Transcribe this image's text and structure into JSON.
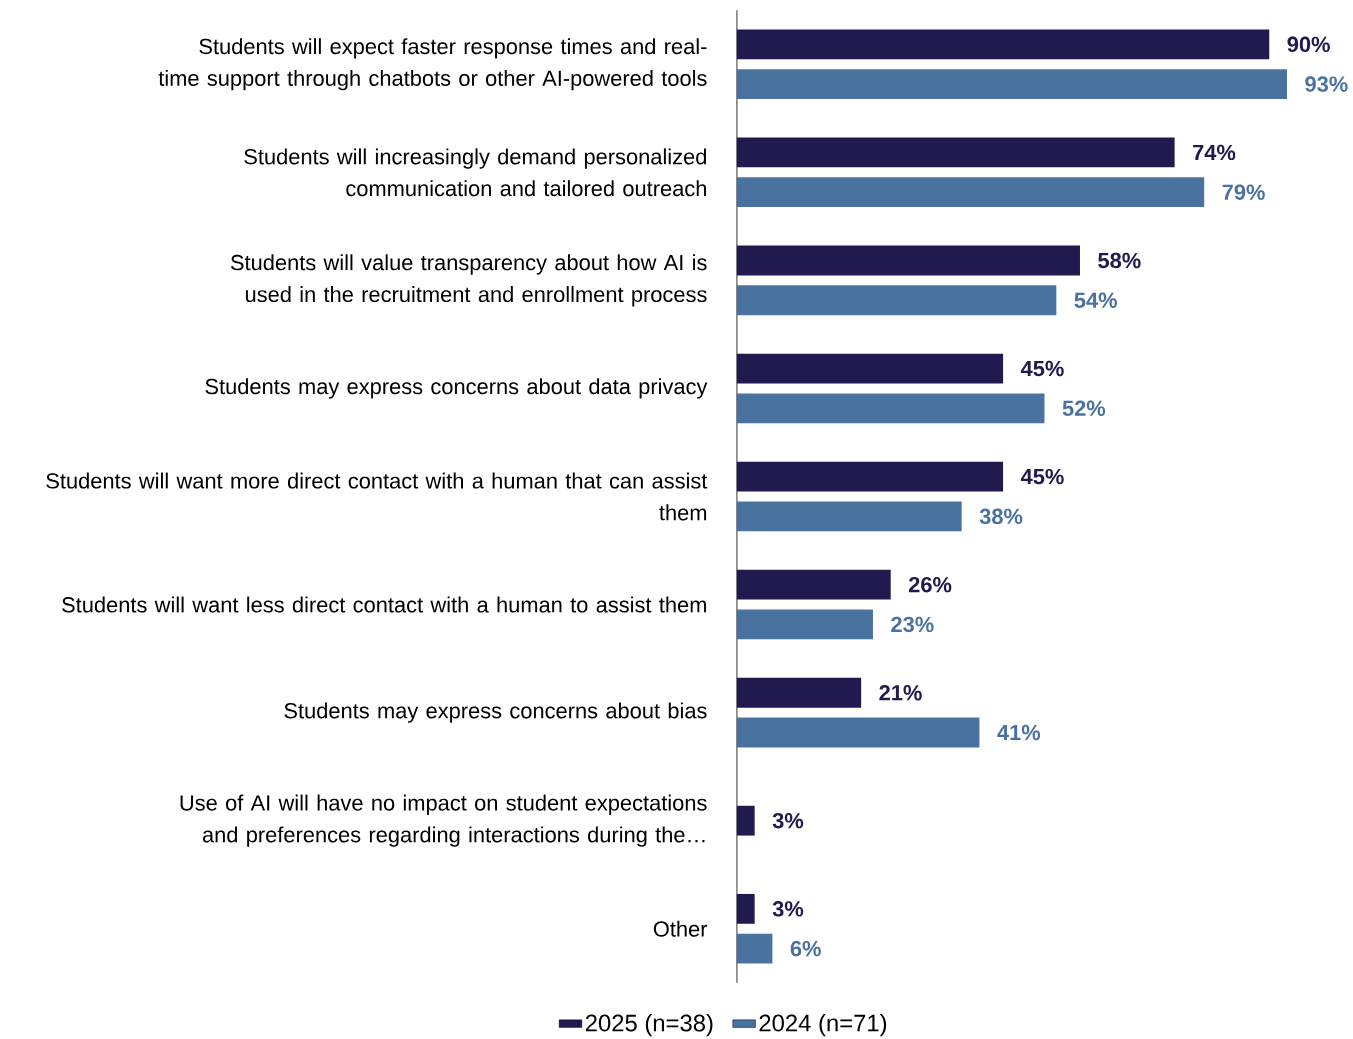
{
  "chart_data": {
    "type": "bar",
    "orientation": "horizontal",
    "legend": "bottom",
    "categories": [
      "Students will expect faster response times and real-time support through chatbots or other AI-powered tools",
      "Students will increasingly demand personalized communication and tailored outreach",
      "Students will value transparency about how AI is used in the recruitment and enrollment process",
      "Students may express concerns about data privacy",
      "Students will want more direct contact with a human that can assist them",
      "Students will want less direct contact with a human to assist them",
      "Students may express concerns about bias",
      "Use of AI will have no impact on student expectations and preferences regarding interactions during the…",
      "Other"
    ],
    "series": [
      {
        "name": "2025 (n=38)",
        "color": "#211a4e",
        "values": [
          90,
          74,
          58,
          45,
          45,
          26,
          21,
          3,
          3
        ],
        "value_labels": [
          "90%",
          "74%",
          "58%",
          "45%",
          "45%",
          "26%",
          "21%",
          "3%",
          "3%"
        ]
      },
      {
        "name": "2024 (n=71)",
        "color": "#4a72a0",
        "values": [
          93,
          79,
          54,
          52,
          38,
          23,
          41,
          null,
          6
        ],
        "value_labels": [
          "93%",
          "79%",
          "54%",
          "52%",
          "38%",
          "23%",
          "41%",
          null,
          "6%"
        ]
      }
    ]
  }
}
